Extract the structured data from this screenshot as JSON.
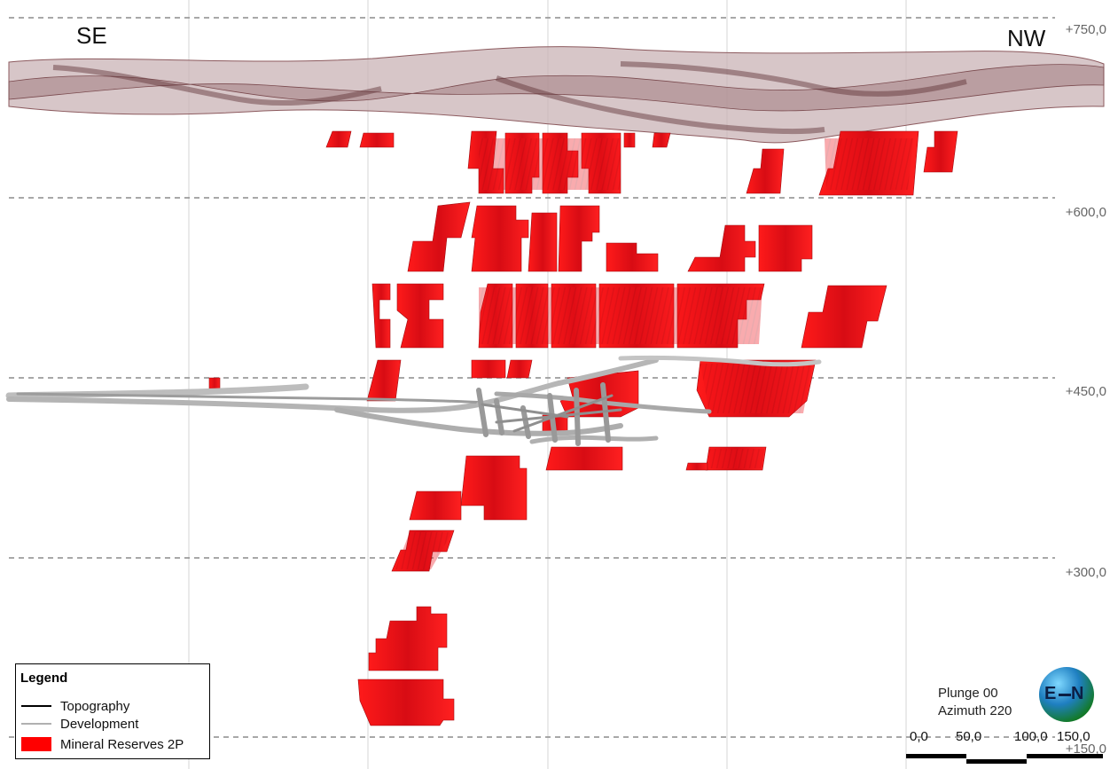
{
  "orientation_labels": {
    "left": "SE",
    "right": "NW"
  },
  "elevation_labels": [
    "+750,0",
    "+600,0",
    "+450,0",
    "+300,0",
    "+150,0"
  ],
  "legend": {
    "title": "Legend",
    "items": [
      {
        "label": "Topography",
        "color": "#000000"
      },
      {
        "label": "Development",
        "color": "#b0b0b0"
      },
      {
        "label": "Mineral Reserves 2P",
        "color": "#ff0000"
      }
    ]
  },
  "view": {
    "plunge": "Plunge 00",
    "azimuth": "Azimuth 220"
  },
  "compass": {
    "left": "E",
    "right": "N"
  },
  "scale_labels": [
    "0,0",
    "50,0",
    "100,0",
    "150,0"
  ],
  "colors": {
    "reserve": "#e8101a",
    "reserve_dark": "#9c0b10",
    "topography": "#8c5a5e",
    "development": "#a8a8a8",
    "grid": "#9a9a9a"
  }
}
